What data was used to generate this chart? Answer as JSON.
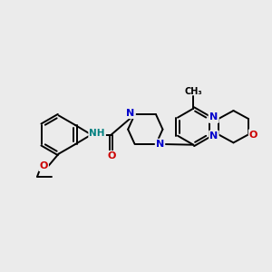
{
  "background_color": "#ebebeb",
  "bond_color": "#000000",
  "nitrogen_color": "#0000cc",
  "oxygen_color": "#cc0000",
  "carbon_color": "#000000",
  "hydrogen_color": "#008080",
  "figsize": [
    3.0,
    3.0
  ],
  "dpi": 100,
  "xlim": [
    0,
    10
  ],
  "ylim": [
    0,
    10
  ]
}
